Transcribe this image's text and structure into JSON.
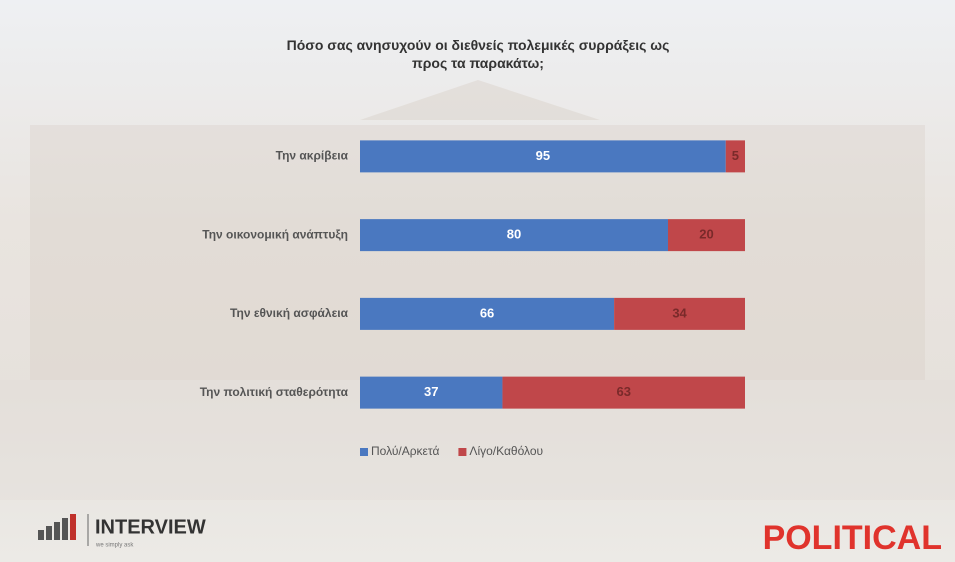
{
  "chart_data": {
    "type": "stacked-bar-horizontal",
    "title": "Πόσο σας ανησυχούν οι διεθνείς πολεμικές συρράξεις ως προς τα παρακάτω;",
    "categories": [
      "Την ακρίβεια",
      "Την οικονομική ανάπτυξη",
      "Την εθνική ασφάλεια",
      "Την πολιτική σταθερότητα"
    ],
    "series": [
      {
        "name": "Πολύ/Αρκετά",
        "color": "#4a78c0",
        "values": [
          95,
          80,
          66,
          37
        ]
      },
      {
        "name": "Λίγο/Καθόλου",
        "color": "#c0474a",
        "values": [
          5,
          20,
          34,
          63
        ]
      }
    ],
    "xlim": [
      0,
      100
    ],
    "legend": "bottom"
  },
  "branding": {
    "left": "INTERVIEW",
    "tagline": "we simply ask",
    "right": "POLITICAL"
  }
}
